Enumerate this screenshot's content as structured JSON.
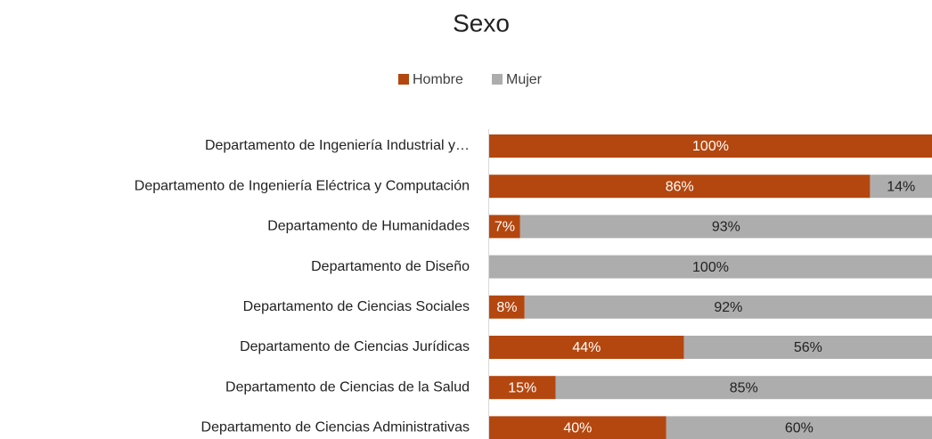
{
  "chart_data": {
    "type": "stacked-bar-horizontal",
    "title": "Sexo",
    "categories": [
      "Departamento de Ingeniería Industrial y…",
      "Departamento de Ingeniería Eléctrica y Computación",
      "Departamento de Humanidades",
      "Departamento de Diseño",
      "Departamento de Ciencias Sociales",
      "Departamento de Ciencias Jurídicas",
      "Departamento de Ciencias de la Salud",
      "Departamento de Ciencias Administrativas"
    ],
    "series": [
      {
        "name": "Hombre",
        "color": "#b4470f",
        "values": [
          100,
          86,
          7,
          0,
          8,
          44,
          15,
          40
        ],
        "value_labels": [
          "100%",
          "86%",
          "7%",
          null,
          "8%",
          "44%",
          "15%",
          "40%"
        ]
      },
      {
        "name": "Mujer",
        "color": "#adadad",
        "values": [
          0,
          14,
          93,
          100,
          92,
          56,
          85,
          60
        ],
        "value_labels": [
          null,
          "14%",
          "93%",
          "100%",
          "92%",
          "56%",
          "85%",
          "60%"
        ]
      }
    ],
    "xlim": [
      0,
      100
    ],
    "legend": "top"
  }
}
